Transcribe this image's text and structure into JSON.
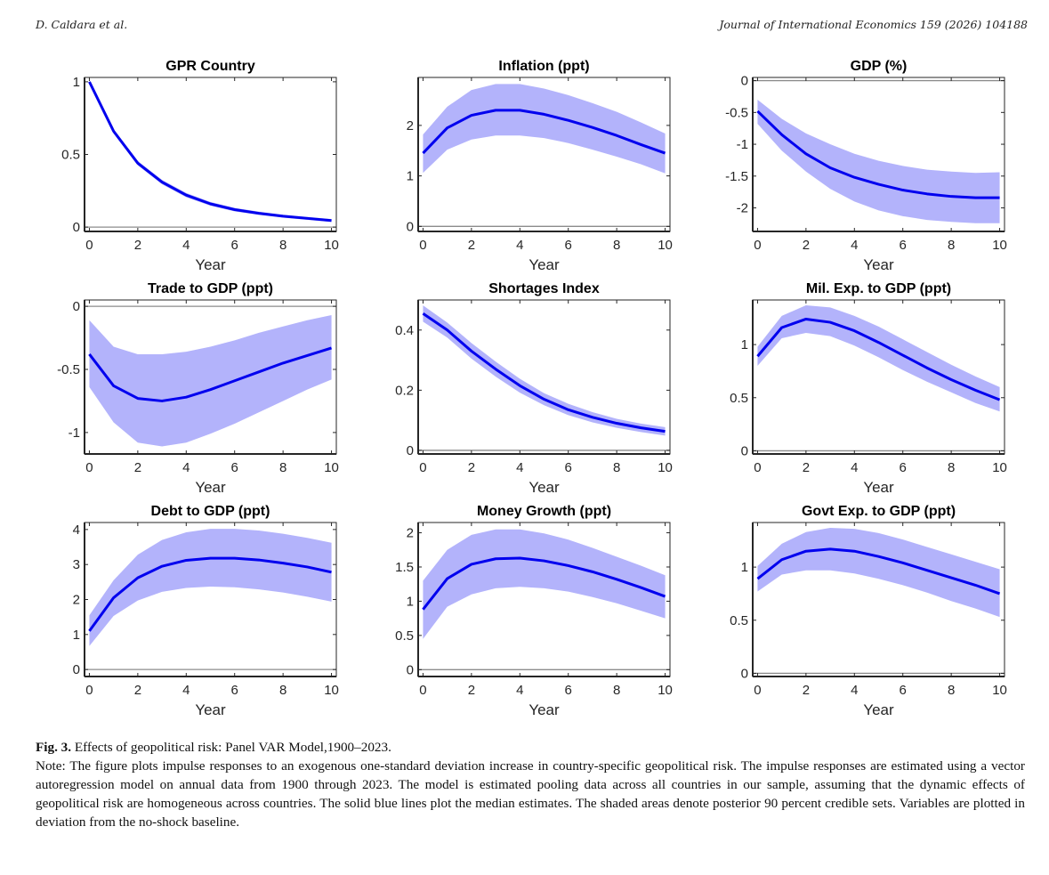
{
  "header": {
    "authors": "D. Caldara et al.",
    "journal": "Journal of International Economics 159 (2026) 104188"
  },
  "caption": {
    "label": "Fig. 3.",
    "title": "Effects of geopolitical risk: Panel VAR Model,1900–2023.",
    "note": "Note: The figure plots impulse responses to an exogenous one-standard deviation increase in country-specific geopolitical risk. The impulse responses are estimated using a vector autoregression model on annual data from 1900 through 2023. The model is estimated pooling data across all countries in our sample, assuming that the dynamic effects of geopolitical risk are homogeneous across countries. The solid blue lines plot the median estimates. The shaded areas denote posterior 90 percent credible sets. Variables are plotted in deviation from the no-shock baseline."
  },
  "colors": {
    "median_line": "#0000ee",
    "band_fill": "#b3b3fb",
    "zero_line": "#8c8c8c",
    "axis": "#262626"
  },
  "chart_data": [
    {
      "type": "line",
      "title": "GPR Country",
      "xlabel": "Year",
      "ylabel": "",
      "x": [
        0,
        1,
        2,
        3,
        4,
        5,
        6,
        7,
        8,
        9,
        10
      ],
      "xticks": [
        0,
        2,
        4,
        6,
        8,
        10
      ],
      "xlim": [
        -0.2,
        10.2
      ],
      "yticks": [
        0,
        0.5,
        1
      ],
      "ytick_labels": [
        "0",
        "0.5",
        "1"
      ],
      "ylim": [
        -0.03,
        1.03
      ],
      "grid": false,
      "series": [
        {
          "name": "median",
          "values": [
            1.0,
            0.66,
            0.44,
            0.31,
            0.22,
            0.16,
            0.12,
            0.095,
            0.075,
            0.06,
            0.045
          ]
        },
        {
          "name": "upper_90",
          "values": [
            1.0,
            0.675,
            0.455,
            0.325,
            0.235,
            0.173,
            0.132,
            0.106,
            0.085,
            0.07,
            0.055
          ]
        },
        {
          "name": "lower_90",
          "values": [
            1.0,
            0.645,
            0.425,
            0.295,
            0.205,
            0.147,
            0.108,
            0.084,
            0.065,
            0.05,
            0.035
          ]
        }
      ]
    },
    {
      "type": "line",
      "title": "Inflation (ppt)",
      "xlabel": "Year",
      "ylabel": "",
      "x": [
        0,
        1,
        2,
        3,
        4,
        5,
        6,
        7,
        8,
        9,
        10
      ],
      "xticks": [
        0,
        2,
        4,
        6,
        8,
        10
      ],
      "xlim": [
        -0.2,
        10.2
      ],
      "yticks": [
        0,
        1,
        2
      ],
      "ytick_labels": [
        "0",
        "1",
        "2"
      ],
      "ylim": [
        -0.1,
        2.95
      ],
      "grid": false,
      "series": [
        {
          "name": "median",
          "values": [
            1.45,
            1.95,
            2.2,
            2.3,
            2.3,
            2.22,
            2.1,
            1.96,
            1.8,
            1.62,
            1.45
          ]
        },
        {
          "name": "upper_90",
          "values": [
            1.82,
            2.37,
            2.7,
            2.82,
            2.82,
            2.73,
            2.6,
            2.44,
            2.27,
            2.06,
            1.84
          ]
        },
        {
          "name": "lower_90",
          "values": [
            1.06,
            1.52,
            1.72,
            1.8,
            1.8,
            1.75,
            1.65,
            1.52,
            1.38,
            1.23,
            1.05
          ]
        }
      ]
    },
    {
      "type": "line",
      "title": "GDP (%)",
      "xlabel": "Year",
      "ylabel": "",
      "x": [
        0,
        1,
        2,
        3,
        4,
        5,
        6,
        7,
        8,
        9,
        10
      ],
      "xticks": [
        0,
        2,
        4,
        6,
        8,
        10
      ],
      "xlim": [
        -0.2,
        10.2
      ],
      "yticks": [
        -2,
        -1.5,
        -1,
        -0.5,
        0
      ],
      "ytick_labels": [
        "-2",
        "-1.5",
        "-1",
        "-0.5",
        "0"
      ],
      "ylim": [
        -2.37,
        0.05
      ],
      "grid": false,
      "series": [
        {
          "name": "median",
          "values": [
            -0.48,
            -0.85,
            -1.15,
            -1.37,
            -1.52,
            -1.63,
            -1.72,
            -1.78,
            -1.82,
            -1.84,
            -1.84
          ]
        },
        {
          "name": "upper_90",
          "values": [
            -0.3,
            -0.6,
            -0.83,
            -1.0,
            -1.15,
            -1.26,
            -1.34,
            -1.4,
            -1.43,
            -1.45,
            -1.44
          ]
        },
        {
          "name": "lower_90",
          "values": [
            -0.68,
            -1.1,
            -1.43,
            -1.7,
            -1.9,
            -2.04,
            -2.13,
            -2.19,
            -2.22,
            -2.24,
            -2.24
          ]
        }
      ]
    },
    {
      "type": "line",
      "title": "Trade to GDP (ppt)",
      "xlabel": "Year",
      "ylabel": "",
      "x": [
        0,
        1,
        2,
        3,
        4,
        5,
        6,
        7,
        8,
        9,
        10
      ],
      "xticks": [
        0,
        2,
        4,
        6,
        8,
        10
      ],
      "xlim": [
        -0.2,
        10.2
      ],
      "yticks": [
        -1,
        -0.5,
        0
      ],
      "ytick_labels": [
        "-1",
        "-0.5",
        "0"
      ],
      "ylim": [
        -1.17,
        0.05
      ],
      "grid": false,
      "series": [
        {
          "name": "median",
          "values": [
            -0.38,
            -0.63,
            -0.73,
            -0.75,
            -0.72,
            -0.66,
            -0.59,
            -0.52,
            -0.45,
            -0.39,
            -0.33
          ]
        },
        {
          "name": "upper_90",
          "values": [
            -0.11,
            -0.32,
            -0.38,
            -0.38,
            -0.36,
            -0.32,
            -0.27,
            -0.21,
            -0.16,
            -0.11,
            -0.07
          ]
        },
        {
          "name": "lower_90",
          "values": [
            -0.64,
            -0.92,
            -1.08,
            -1.11,
            -1.08,
            -1.01,
            -0.93,
            -0.84,
            -0.75,
            -0.66,
            -0.58
          ]
        }
      ]
    },
    {
      "type": "line",
      "title": "Shortages Index",
      "xlabel": "Year",
      "ylabel": "",
      "x": [
        0,
        1,
        2,
        3,
        4,
        5,
        6,
        7,
        8,
        9,
        10
      ],
      "xticks": [
        0,
        2,
        4,
        6,
        8,
        10
      ],
      "xlim": [
        -0.2,
        10.2
      ],
      "yticks": [
        0,
        0.2,
        0.4
      ],
      "ytick_labels": [
        "0",
        "0.2",
        "0.4"
      ],
      "ylim": [
        -0.012,
        0.5
      ],
      "grid": false,
      "series": [
        {
          "name": "median",
          "values": [
            0.455,
            0.4,
            0.33,
            0.27,
            0.215,
            0.17,
            0.135,
            0.11,
            0.09,
            0.075,
            0.063
          ]
        },
        {
          "name": "upper_90",
          "values": [
            0.482,
            0.425,
            0.357,
            0.295,
            0.238,
            0.19,
            0.155,
            0.127,
            0.105,
            0.089,
            0.077
          ]
        },
        {
          "name": "lower_90",
          "values": [
            0.428,
            0.375,
            0.305,
            0.245,
            0.192,
            0.15,
            0.117,
            0.093,
            0.075,
            0.061,
            0.049
          ]
        }
      ]
    },
    {
      "type": "line",
      "title": "Mil. Exp. to GDP (ppt)",
      "xlabel": "Year",
      "ylabel": "",
      "x": [
        0,
        1,
        2,
        3,
        4,
        5,
        6,
        7,
        8,
        9,
        10
      ],
      "xticks": [
        0,
        2,
        4,
        6,
        8,
        10
      ],
      "xlim": [
        -0.2,
        10.2
      ],
      "yticks": [
        0,
        0.5,
        1
      ],
      "ytick_labels": [
        "0",
        "0.5",
        "1"
      ],
      "ylim": [
        -0.03,
        1.42
      ],
      "grid": false,
      "series": [
        {
          "name": "median",
          "values": [
            0.89,
            1.16,
            1.24,
            1.21,
            1.13,
            1.02,
            0.9,
            0.78,
            0.67,
            0.57,
            0.48
          ]
        },
        {
          "name": "upper_90",
          "values": [
            0.98,
            1.27,
            1.37,
            1.35,
            1.27,
            1.17,
            1.05,
            0.93,
            0.81,
            0.7,
            0.6
          ]
        },
        {
          "name": "lower_90",
          "values": [
            0.8,
            1.06,
            1.11,
            1.08,
            0.99,
            0.88,
            0.76,
            0.65,
            0.55,
            0.45,
            0.37
          ]
        }
      ]
    },
    {
      "type": "line",
      "title": "Debt to GDP (ppt)",
      "xlabel": "Year",
      "ylabel": "",
      "x": [
        0,
        1,
        2,
        3,
        4,
        5,
        6,
        7,
        8,
        9,
        10
      ],
      "xticks": [
        0,
        2,
        4,
        6,
        8,
        10
      ],
      "xlim": [
        -0.2,
        10.2
      ],
      "yticks": [
        0,
        1,
        2,
        3,
        4
      ],
      "ytick_labels": [
        "0",
        "1",
        "2",
        "3",
        "4"
      ],
      "ylim": [
        -0.2,
        4.2
      ],
      "grid": false,
      "series": [
        {
          "name": "median",
          "values": [
            1.1,
            2.05,
            2.62,
            2.95,
            3.12,
            3.18,
            3.18,
            3.13,
            3.04,
            2.93,
            2.78
          ]
        },
        {
          "name": "upper_90",
          "values": [
            1.55,
            2.55,
            3.28,
            3.7,
            3.92,
            4.02,
            4.02,
            3.97,
            3.88,
            3.76,
            3.62
          ]
        },
        {
          "name": "lower_90",
          "values": [
            0.67,
            1.53,
            1.97,
            2.22,
            2.33,
            2.37,
            2.35,
            2.29,
            2.2,
            2.08,
            1.94
          ]
        }
      ]
    },
    {
      "type": "line",
      "title": "Money Growth (ppt)",
      "xlabel": "Year",
      "ylabel": "",
      "x": [
        0,
        1,
        2,
        3,
        4,
        5,
        6,
        7,
        8,
        9,
        10
      ],
      "xticks": [
        0,
        2,
        4,
        6,
        8,
        10
      ],
      "xlim": [
        -0.2,
        10.2
      ],
      "yticks": [
        0,
        0.5,
        1,
        1.5,
        2
      ],
      "ytick_labels": [
        "0",
        "0.5",
        "1",
        "1.5",
        "2"
      ],
      "ylim": [
        -0.1,
        2.15
      ],
      "grid": false,
      "series": [
        {
          "name": "median",
          "values": [
            0.88,
            1.33,
            1.54,
            1.62,
            1.63,
            1.59,
            1.52,
            1.43,
            1.32,
            1.2,
            1.07
          ]
        },
        {
          "name": "upper_90",
          "values": [
            1.3,
            1.75,
            1.97,
            2.05,
            2.05,
            1.99,
            1.9,
            1.78,
            1.65,
            1.52,
            1.38
          ]
        },
        {
          "name": "lower_90",
          "values": [
            0.45,
            0.92,
            1.1,
            1.19,
            1.21,
            1.19,
            1.14,
            1.06,
            0.97,
            0.86,
            0.75
          ]
        }
      ]
    },
    {
      "type": "line",
      "title": "Govt Exp. to GDP (ppt)",
      "xlabel": "Year",
      "ylabel": "",
      "x": [
        0,
        1,
        2,
        3,
        4,
        5,
        6,
        7,
        8,
        9,
        10
      ],
      "xticks": [
        0,
        2,
        4,
        6,
        8,
        10
      ],
      "xlim": [
        -0.2,
        10.2
      ],
      "yticks": [
        0,
        0.5,
        1
      ],
      "ytick_labels": [
        "0",
        "0.5",
        "1"
      ],
      "ylim": [
        -0.03,
        1.42
      ],
      "grid": false,
      "series": [
        {
          "name": "median",
          "values": [
            0.89,
            1.07,
            1.15,
            1.17,
            1.15,
            1.1,
            1.04,
            0.97,
            0.9,
            0.83,
            0.75
          ]
        },
        {
          "name": "upper_90",
          "values": [
            1.01,
            1.22,
            1.33,
            1.37,
            1.36,
            1.32,
            1.26,
            1.19,
            1.12,
            1.05,
            0.98
          ]
        },
        {
          "name": "lower_90",
          "values": [
            0.77,
            0.93,
            0.97,
            0.97,
            0.94,
            0.89,
            0.83,
            0.76,
            0.68,
            0.61,
            0.53
          ]
        }
      ]
    }
  ]
}
